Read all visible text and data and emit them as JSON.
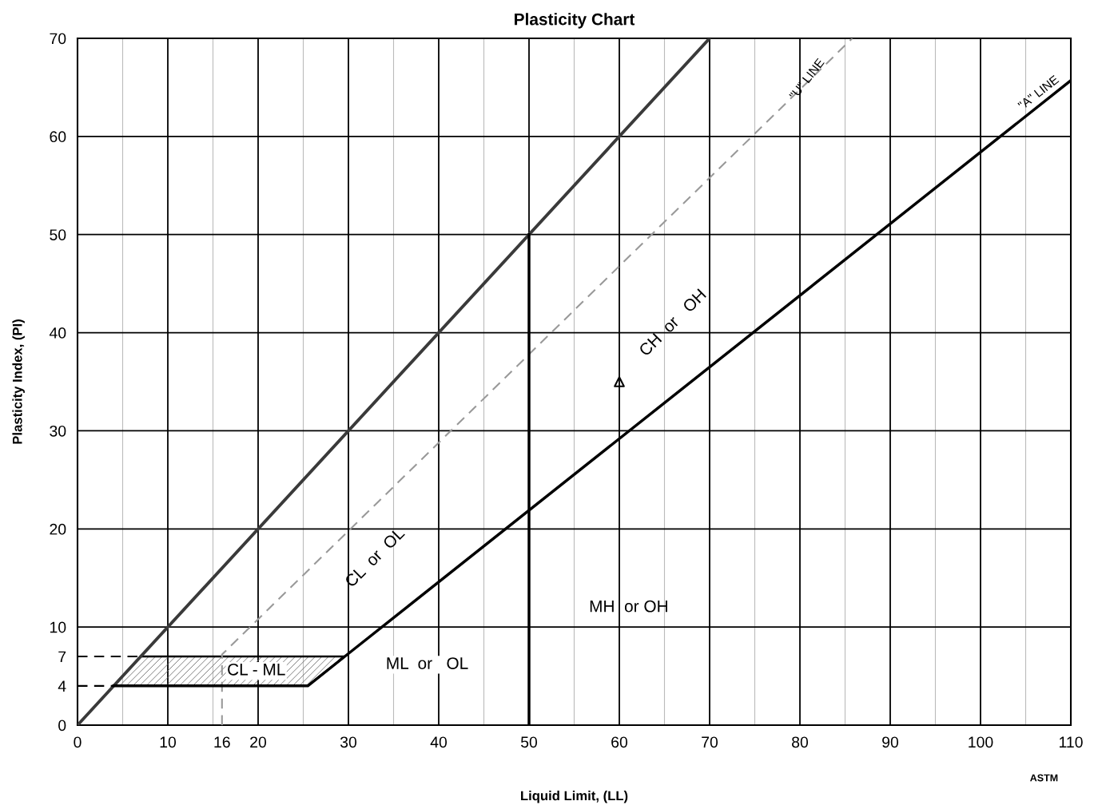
{
  "chart_data": {
    "type": "line",
    "title": "Plasticity Chart",
    "xlabel": "Liquid Limit, (LL)",
    "ylabel": "Plasticity Index, (PI)",
    "xlim": [
      0,
      110
    ],
    "ylim": [
      0,
      70
    ],
    "xticks": [
      0,
      {
        "value": 5,
        "label": null
      },
      10,
      {
        "value": 15,
        "label": null
      },
      16,
      20,
      {
        "value": 25,
        "label": null
      },
      30,
      {
        "value": 35,
        "label": null
      },
      40,
      {
        "value": 45,
        "label": null
      },
      50,
      {
        "value": 55,
        "label": null
      },
      60,
      {
        "value": 65,
        "label": null
      },
      70,
      {
        "value": 75,
        "label": null
      },
      80,
      {
        "value": 85,
        "label": null
      },
      90,
      {
        "value": 95,
        "label": null
      },
      100,
      {
        "value": 105,
        "label": null
      },
      110
    ],
    "yticks": [
      0,
      4,
      7,
      10,
      20,
      30,
      40,
      50,
      60,
      70
    ],
    "grid": true,
    "series": [
      {
        "type": "area",
        "color": "#000000",
        "x": [
          4,
          7,
          29.6,
          25.5
        ],
        "values": [
          4,
          7,
          7,
          4
        ]
      },
      {
        "color": "#3a3a3a",
        "line_style": "solid",
        "x": [
          0,
          70
        ],
        "values": [
          0,
          70
        ]
      },
      {
        "color": "#999999",
        "line_style": "dashed",
        "x": [
          16,
          16,
          85.8
        ],
        "values": [
          0,
          7.2,
          70
        ]
      },
      {
        "color": "#000000",
        "line_style": "solid",
        "x": [
          4,
          25.5,
          29.6,
          110
        ],
        "values": [
          4,
          4,
          7,
          65.7
        ]
      },
      {
        "color": "#000000",
        "line_style": "solid",
        "x": [
          50,
          50
        ],
        "values": [
          0,
          50
        ]
      },
      {
        "color": "#000000",
        "line_style": "dashed",
        "x": [
          0,
          7
        ],
        "values": [
          7,
          7
        ]
      },
      {
        "color": "#000000",
        "line_style": "dashed",
        "x": [
          0,
          4
        ],
        "values": [
          4,
          4
        ]
      },
      {
        "type": "scatter",
        "color": "#000000",
        "marker": "triangle",
        "x": [
          60
        ],
        "values": [
          35
        ]
      }
    ],
    "annotations": [
      "CL - ML",
      "ML  or   OL",
      "CL  or  OL",
      "MH  or OH",
      "CH  or   OH",
      "\"U\" LINE",
      "\"A\" LINE",
      "ASTM"
    ]
  }
}
